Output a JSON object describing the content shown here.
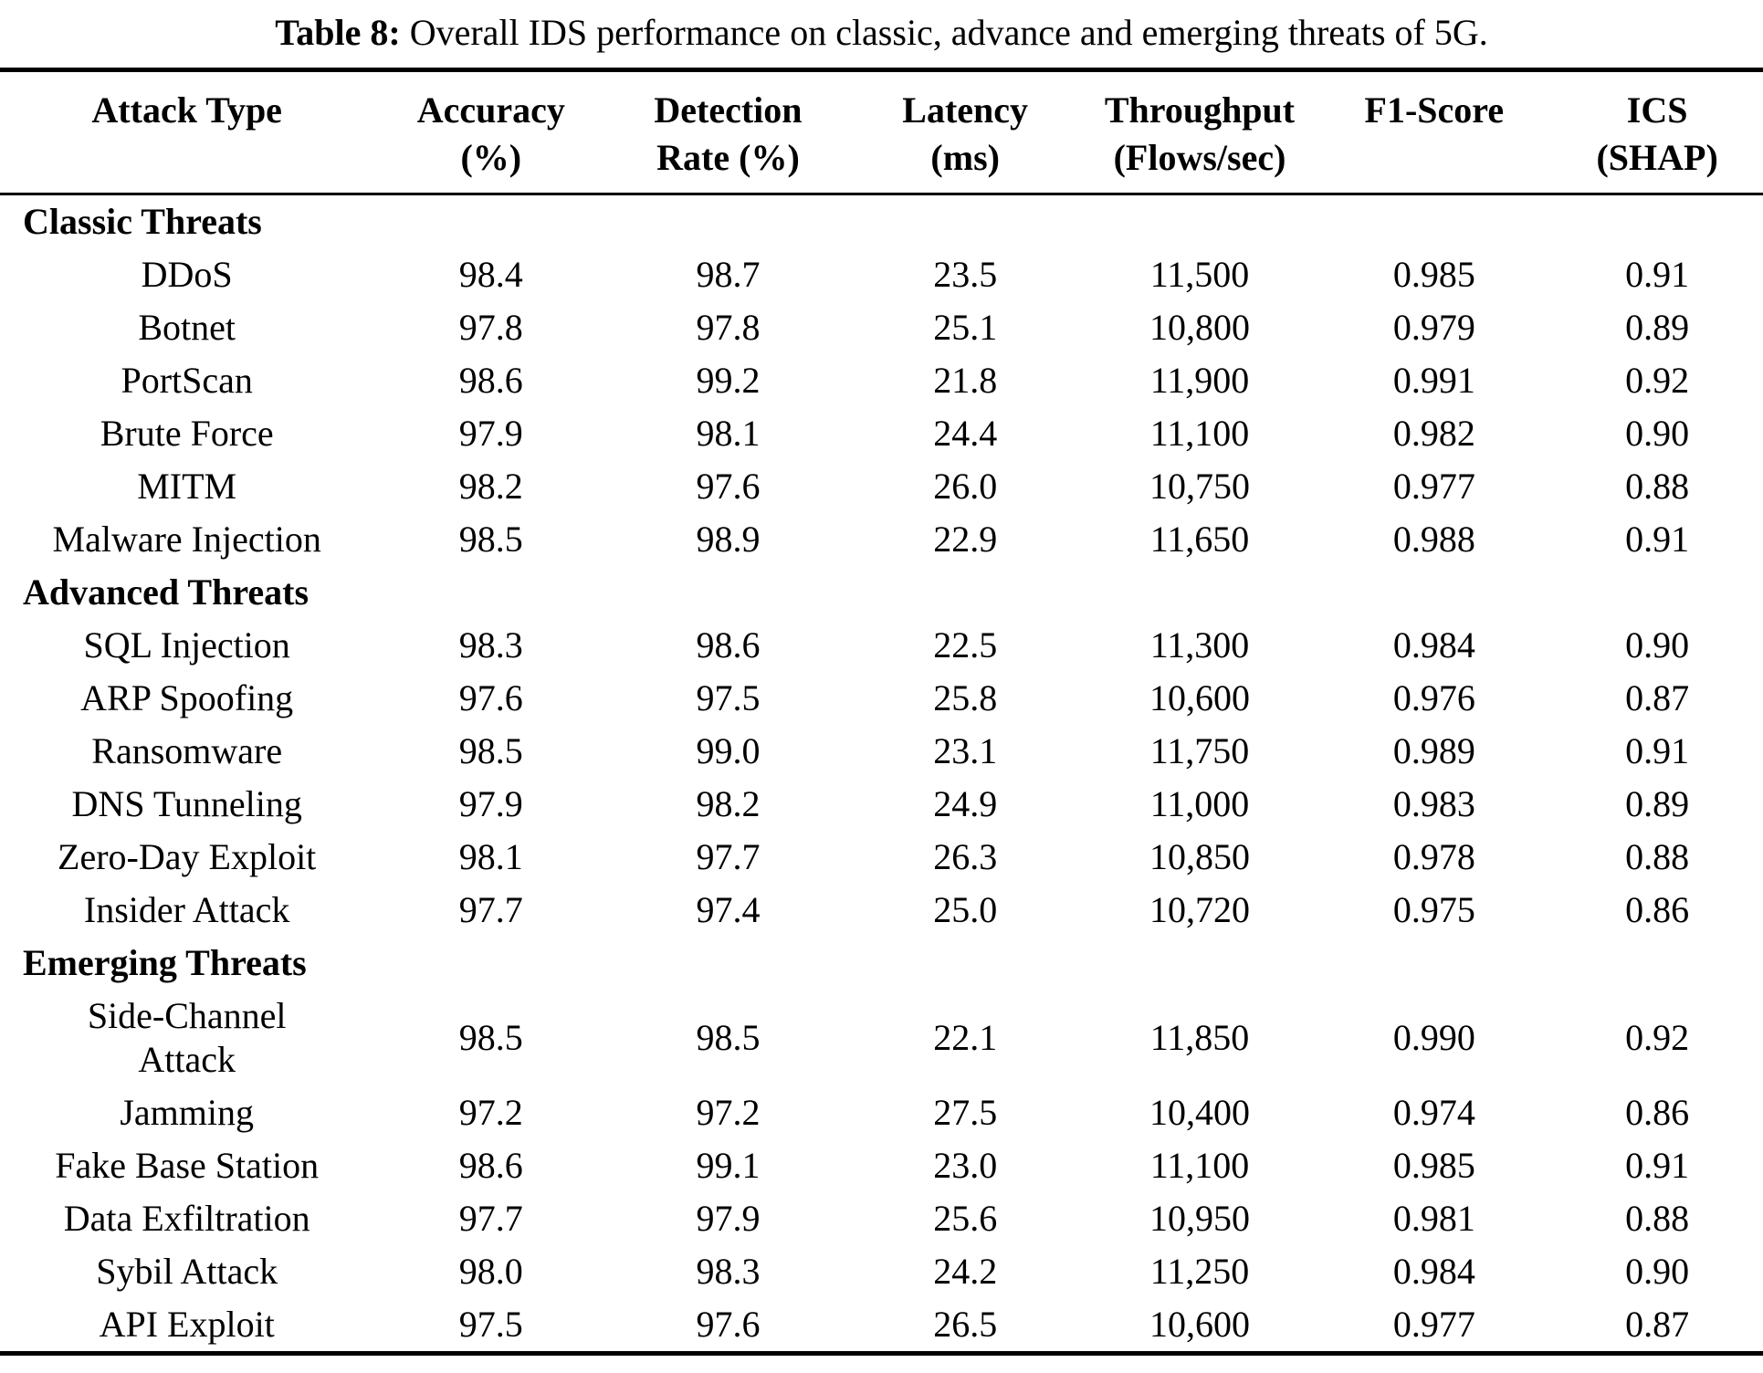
{
  "caption": {
    "label": "Table 8:",
    "text": "Overall IDS performance on classic, advance and emerging threats of 5G."
  },
  "table": {
    "columns": [
      {
        "line1": "Attack Type",
        "line2": ""
      },
      {
        "line1": "Accuracy",
        "line2": "(%)"
      },
      {
        "line1": "Detection",
        "line2": "Rate (%)"
      },
      {
        "line1": "Latency",
        "line2": "(ms)"
      },
      {
        "line1": "Throughput",
        "line2": "(Flows/sec)"
      },
      {
        "line1": "F1-Score",
        "line2": ""
      },
      {
        "line1": "ICS",
        "line2": "(SHAP)"
      }
    ],
    "sections": [
      {
        "name": "Classic Threats",
        "rows": [
          {
            "attack": "DDoS",
            "accuracy": "98.4",
            "detection_rate": "98.7",
            "latency": "23.5",
            "throughput": "11,500",
            "f1": "0.985",
            "ics": "0.91"
          },
          {
            "attack": "Botnet",
            "accuracy": "97.8",
            "detection_rate": "97.8",
            "latency": "25.1",
            "throughput": "10,800",
            "f1": "0.979",
            "ics": "0.89"
          },
          {
            "attack": "PortScan",
            "accuracy": "98.6",
            "detection_rate": "99.2",
            "latency": "21.8",
            "throughput": "11,900",
            "f1": "0.991",
            "ics": "0.92"
          },
          {
            "attack": "Brute Force",
            "accuracy": "97.9",
            "detection_rate": "98.1",
            "latency": "24.4",
            "throughput": "11,100",
            "f1": "0.982",
            "ics": "0.90"
          },
          {
            "attack": "MITM",
            "accuracy": "98.2",
            "detection_rate": "97.6",
            "latency": "26.0",
            "throughput": "10,750",
            "f1": "0.977",
            "ics": "0.88"
          },
          {
            "attack": "Malware Injection",
            "accuracy": "98.5",
            "detection_rate": "98.9",
            "latency": "22.9",
            "throughput": "11,650",
            "f1": "0.988",
            "ics": "0.91"
          }
        ]
      },
      {
        "name": "Advanced Threats",
        "rows": [
          {
            "attack": "SQL Injection",
            "accuracy": "98.3",
            "detection_rate": "98.6",
            "latency": "22.5",
            "throughput": "11,300",
            "f1": "0.984",
            "ics": "0.90"
          },
          {
            "attack": "ARP Spoofing",
            "accuracy": "97.6",
            "detection_rate": "97.5",
            "latency": "25.8",
            "throughput": "10,600",
            "f1": "0.976",
            "ics": "0.87"
          },
          {
            "attack": "Ransomware",
            "accuracy": "98.5",
            "detection_rate": "99.0",
            "latency": "23.1",
            "throughput": "11,750",
            "f1": "0.989",
            "ics": "0.91"
          },
          {
            "attack": "DNS Tunneling",
            "accuracy": "97.9",
            "detection_rate": "98.2",
            "latency": "24.9",
            "throughput": "11,000",
            "f1": "0.983",
            "ics": "0.89"
          },
          {
            "attack": "Zero-Day Exploit",
            "accuracy": "98.1",
            "detection_rate": "97.7",
            "latency": "26.3",
            "throughput": "10,850",
            "f1": "0.978",
            "ics": "0.88"
          },
          {
            "attack": "Insider Attack",
            "accuracy": "97.7",
            "detection_rate": "97.4",
            "latency": "25.0",
            "throughput": "10,720",
            "f1": "0.975",
            "ics": "0.86"
          }
        ]
      },
      {
        "name": "Emerging Threats",
        "rows": [
          {
            "attack": [
              "Side-Channel",
              "Attack"
            ],
            "accuracy": "98.5",
            "detection_rate": "98.5",
            "latency": "22.1",
            "throughput": "11,850",
            "f1": "0.990",
            "ics": "0.92"
          },
          {
            "attack": "Jamming",
            "accuracy": "97.2",
            "detection_rate": "97.2",
            "latency": "27.5",
            "throughput": "10,400",
            "f1": "0.974",
            "ics": "0.86"
          },
          {
            "attack": "Fake Base Station",
            "accuracy": "98.6",
            "detection_rate": "99.1",
            "latency": "23.0",
            "throughput": "11,100",
            "f1": "0.985",
            "ics": "0.91"
          },
          {
            "attack": "Data Exfiltration",
            "accuracy": "97.7",
            "detection_rate": "97.9",
            "latency": "25.6",
            "throughput": "10,950",
            "f1": "0.981",
            "ics": "0.88"
          },
          {
            "attack": "Sybil Attack",
            "accuracy": "98.0",
            "detection_rate": "98.3",
            "latency": "24.2",
            "throughput": "11,250",
            "f1": "0.984",
            "ics": "0.90"
          },
          {
            "attack": "API Exploit",
            "accuracy": "97.5",
            "detection_rate": "97.6",
            "latency": "26.5",
            "throughput": "10,600",
            "f1": "0.977",
            "ics": "0.87"
          }
        ]
      }
    ]
  }
}
